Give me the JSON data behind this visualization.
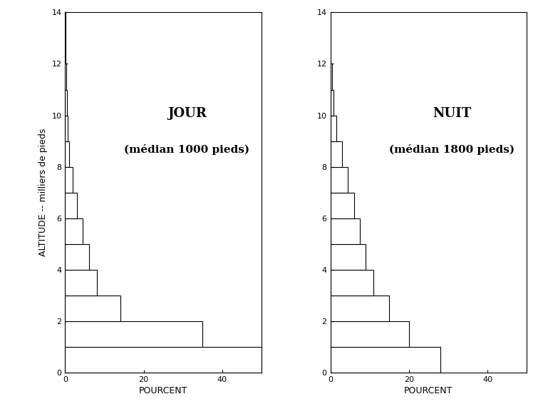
{
  "jour": {
    "title": "JOUR",
    "subtitle": "(médian 1000 pieds)",
    "values": [
      50,
      35,
      14,
      8,
      6,
      4.5,
      3,
      2,
      1,
      0.7,
      0.4,
      0.2,
      0.1,
      0.05
    ]
  },
  "nuit": {
    "title": "NUIT",
    "subtitle": "(médian 1800 pieds)",
    "values": [
      28,
      20,
      15,
      11,
      9,
      7.5,
      6,
      4.5,
      3,
      1.5,
      0.8,
      0.4,
      0.15,
      0.05
    ]
  },
  "altitudes": [
    0,
    1,
    2,
    3,
    4,
    5,
    6,
    7,
    8,
    9,
    10,
    11,
    12,
    13
  ],
  "ylim": [
    0,
    14
  ],
  "xlim": [
    0,
    50
  ],
  "yticks": [
    0,
    2,
    4,
    6,
    8,
    10,
    12,
    14
  ],
  "xticks": [
    0,
    20,
    40
  ],
  "ylabel": "ALTITUDE -- milliers de pieds",
  "xlabel": "POURCENT",
  "bg_color": "#ffffff",
  "bar_facecolor": "#ffffff",
  "bar_edgecolor": "#000000",
  "title_fontsize": 13,
  "subtitle_fontsize": 11,
  "axis_label_fontsize": 9,
  "tick_fontsize": 8
}
